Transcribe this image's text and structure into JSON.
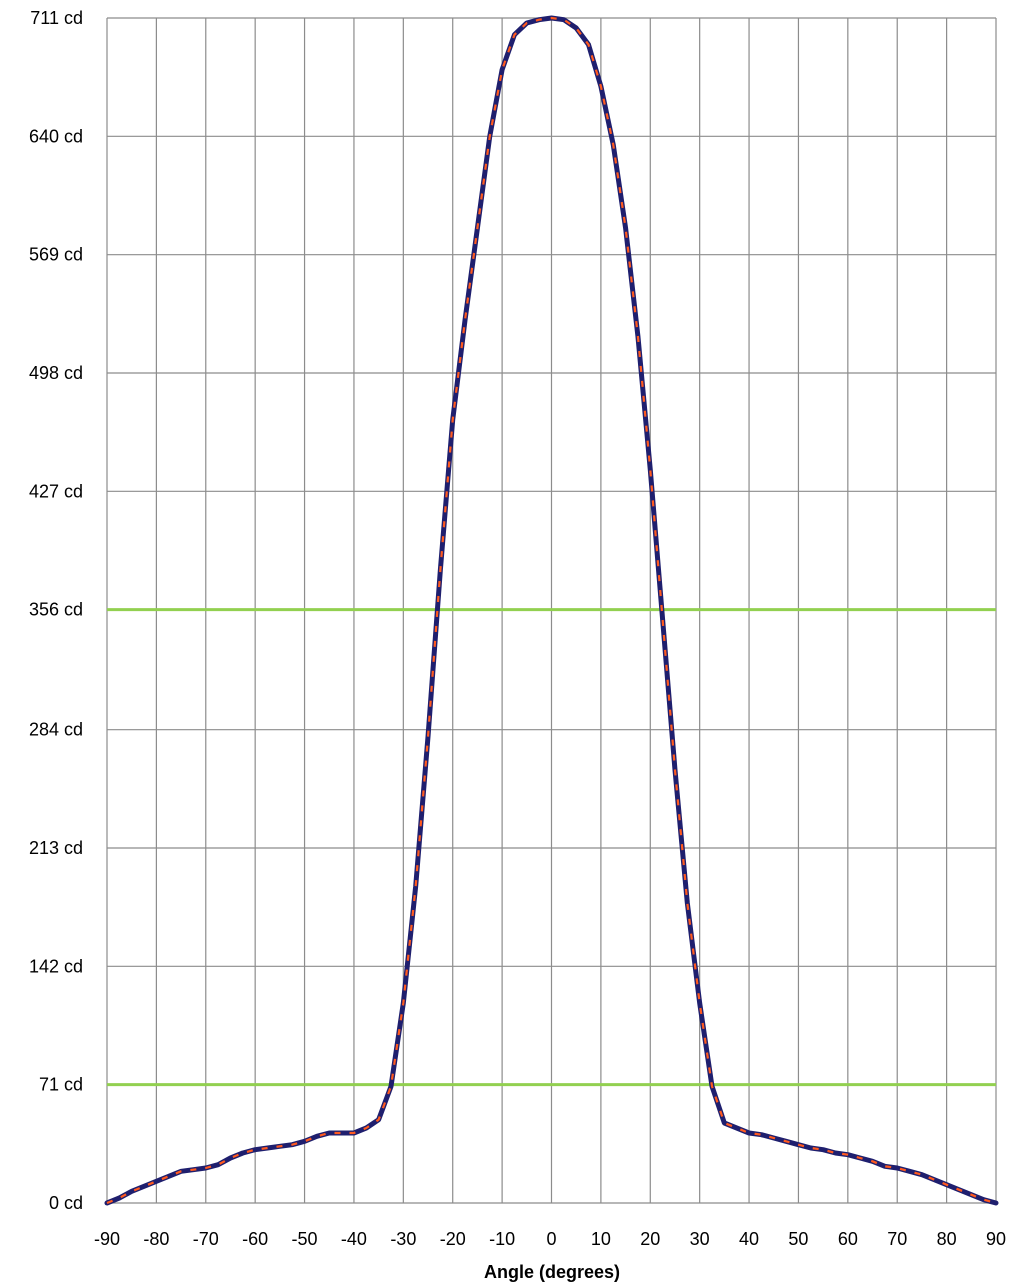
{
  "chart_data": {
    "type": "line",
    "title": "",
    "xlabel": "Angle (degrees)",
    "ylabel": "",
    "xlim": [
      -90,
      90
    ],
    "ylim": [
      0,
      711
    ],
    "x_ticks": [
      -90,
      -80,
      -70,
      -60,
      -50,
      -40,
      -30,
      -20,
      -10,
      0,
      10,
      20,
      30,
      40,
      50,
      60,
      70,
      80,
      90
    ],
    "x_tick_labels": [
      "-90",
      "-80",
      "-70",
      "-60",
      "-50",
      "-40",
      "-30",
      "-20",
      "-10",
      "0",
      "10",
      "20",
      "30",
      "40",
      "50",
      "60",
      "70",
      "80",
      "90"
    ],
    "y_ticks": [
      0,
      71,
      142,
      213,
      284,
      356,
      427,
      498,
      569,
      640,
      711
    ],
    "y_tick_labels": [
      "0 cd",
      "71 cd",
      "142 cd",
      "213 cd",
      "284 cd",
      "356 cd",
      "427 cd",
      "498 cd",
      "569 cd",
      "640 cd",
      "711 cd"
    ],
    "grid": true,
    "reference_lines": [
      {
        "y": 356,
        "color": "#92d050"
      },
      {
        "y": 71,
        "color": "#92d050"
      }
    ],
    "series": [
      {
        "color": "#1f1f6e",
        "dash_color": "#ff5a1f",
        "style": "dashed-two-tone",
        "x": [
          -90,
          -87.5,
          -85,
          -82.5,
          -80,
          -77.5,
          -75,
          -72.5,
          -70,
          -67.5,
          -65,
          -62.5,
          -60,
          -57.5,
          -55,
          -52.5,
          -50,
          -47.5,
          -45,
          -42.5,
          -40,
          -37.5,
          -35,
          -32.5,
          -30,
          -27.5,
          -25,
          -22.5,
          -20,
          -17.5,
          -15,
          -12.5,
          -10,
          -7.5,
          -5,
          -2.5,
          0,
          2.5,
          5,
          7.5,
          10,
          12.5,
          15,
          17.5,
          20,
          22.5,
          25,
          27.5,
          30,
          32.5,
          35,
          37.5,
          40,
          42.5,
          45,
          47.5,
          50,
          52.5,
          55,
          57.5,
          60,
          62.5,
          65,
          67.5,
          70,
          72.5,
          75,
          77.5,
          80,
          82.5,
          85,
          87.5,
          90
        ],
        "y": [
          0,
          3,
          7,
          10,
          13,
          16,
          19,
          20,
          21,
          23,
          27,
          30,
          32,
          33,
          34,
          35,
          37,
          40,
          42,
          42,
          42,
          45,
          50,
          70,
          120,
          190,
          280,
          380,
          470,
          530,
          585,
          640,
          680,
          701,
          708,
          710,
          711,
          710,
          705,
          695,
          670,
          635,
          585,
          520,
          440,
          350,
          260,
          180,
          120,
          70,
          48,
          45,
          42,
          41,
          39,
          37,
          35,
          33,
          32,
          30,
          29,
          27,
          25,
          22,
          21,
          19,
          17,
          14,
          11,
          8,
          5,
          2,
          0
        ]
      }
    ]
  }
}
